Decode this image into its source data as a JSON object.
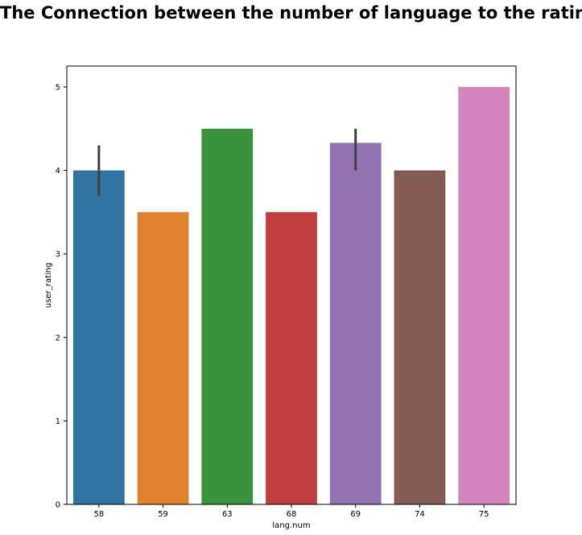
{
  "chart_data": {
    "type": "bar",
    "title": "The Connection between the number of language to the rating",
    "xlabel": "lang.num",
    "ylabel": "user_rating",
    "categories": [
      "58",
      "59",
      "63",
      "68",
      "69",
      "74",
      "75"
    ],
    "values": [
      4.0,
      3.5,
      4.5,
      3.5,
      4.33,
      4.0,
      5.0
    ],
    "error_bars": [
      [
        3.7,
        4.3
      ],
      null,
      null,
      null,
      [
        4.0,
        4.5
      ],
      null,
      null
    ],
    "colors": [
      "#3274a1",
      "#e1812c",
      "#3a923a",
      "#c03d3e",
      "#9372b2",
      "#845b53",
      "#d684bd"
    ],
    "error_bar_color": "#404040",
    "ylim": [
      0,
      5.25
    ],
    "yticks": [
      "0",
      "1",
      "2",
      "3",
      "4",
      "5"
    ],
    "grid": false,
    "legend": "none"
  }
}
